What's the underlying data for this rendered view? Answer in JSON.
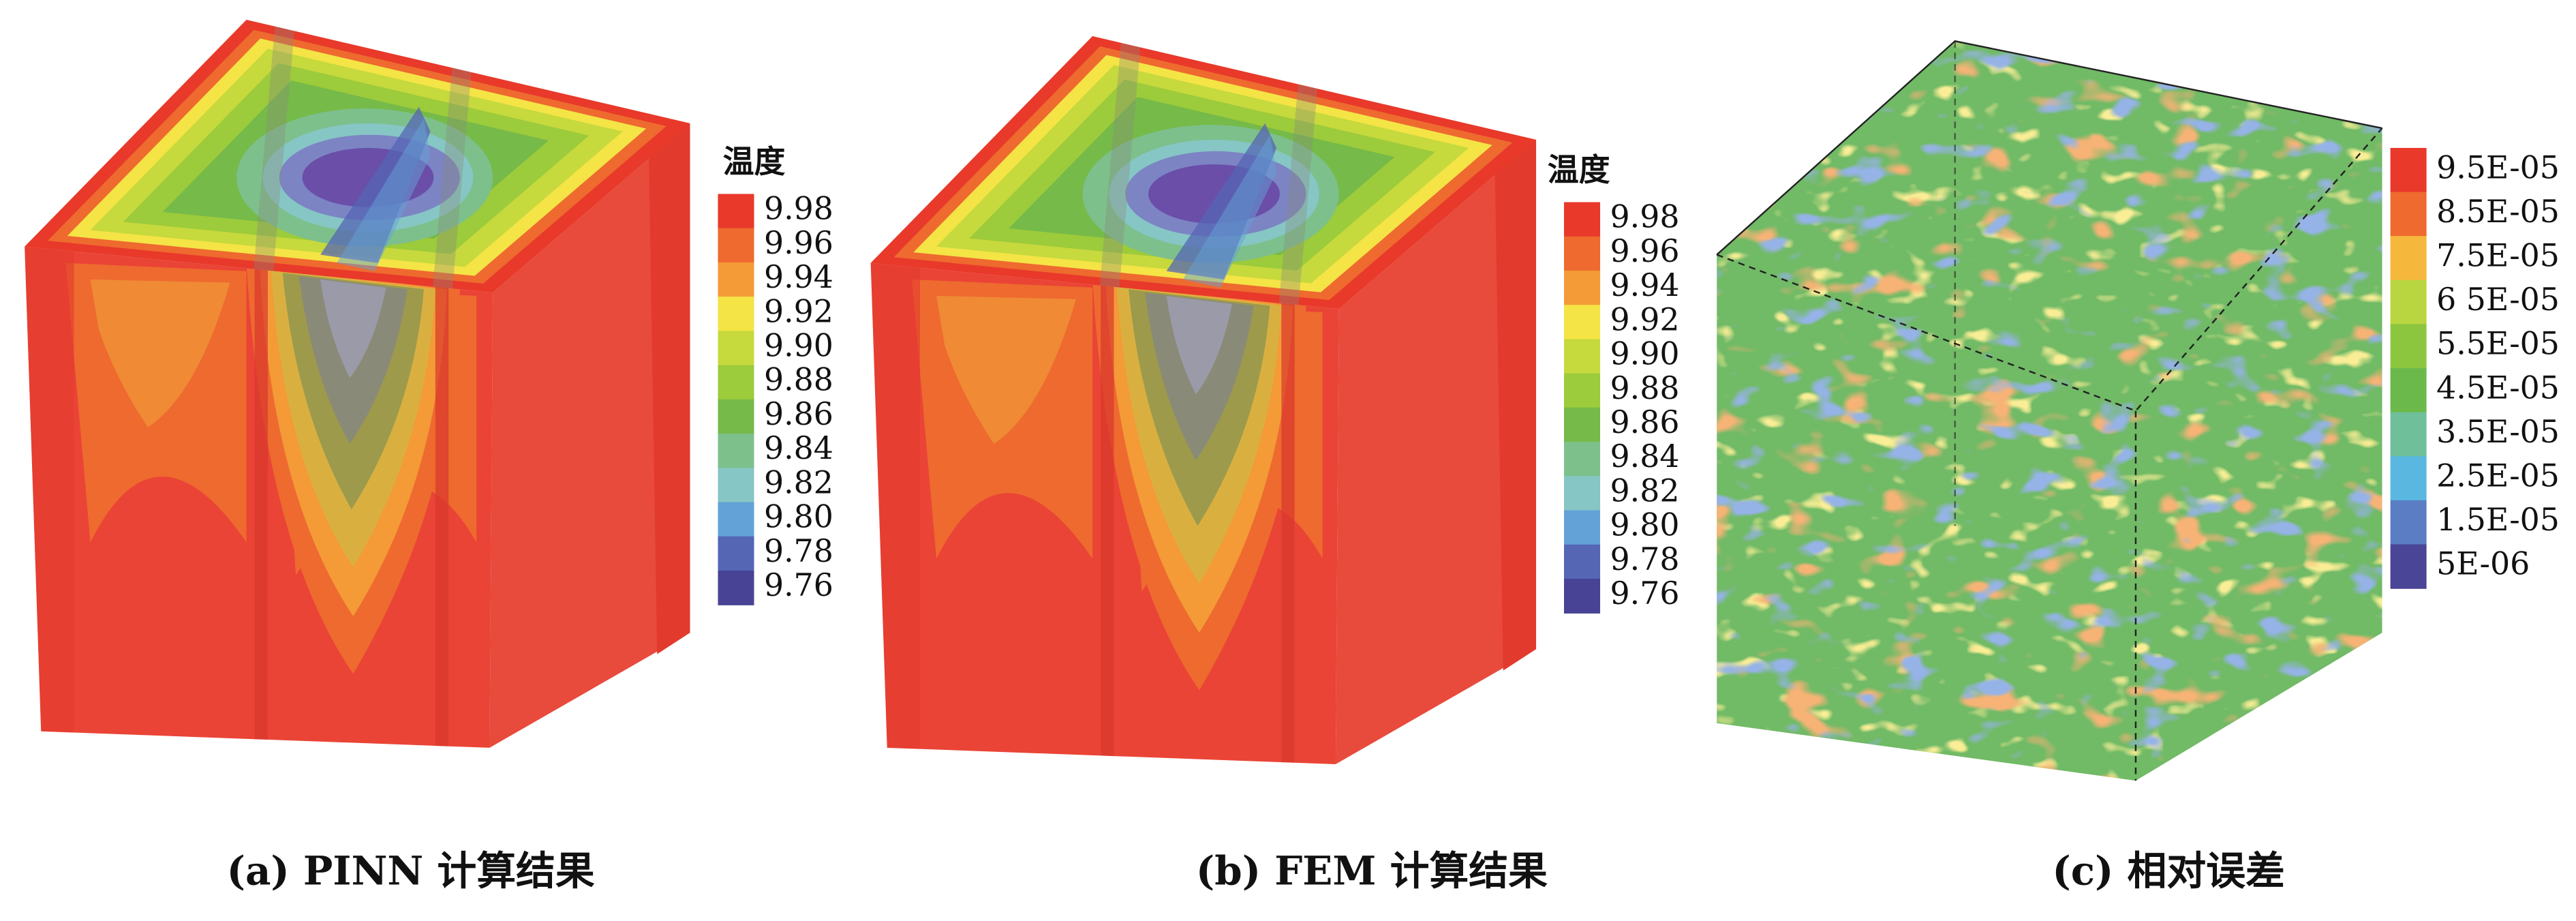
{
  "panels": [
    {
      "caption": "(a) PINN 计算结果",
      "legend": {
        "title": "温度",
        "labels": [
          "9.98",
          "9.96",
          "9.94",
          "9.92",
          "9.90",
          "9.88",
          "9.86",
          "9.84",
          "9.82",
          "9.80",
          "9.78",
          "9.76"
        ],
        "colors": [
          "#e8392a",
          "#ee6a2f",
          "#f49a37",
          "#f4e445",
          "#c6d93d",
          "#9ccb3b",
          "#76ba49",
          "#7dc08c",
          "#86c6c4",
          "#63a2d6",
          "#5566b4",
          "#484395"
        ]
      }
    },
    {
      "caption": "(b) FEM 计算结果",
      "legend": {
        "title": "温度",
        "labels": [
          "9.98",
          "9.96",
          "9.94",
          "9.92",
          "9.90",
          "9.88",
          "9.86",
          "9.84",
          "9.82",
          "9.80",
          "9.78",
          "9.76"
        ],
        "colors": [
          "#e8392a",
          "#ee6a2f",
          "#f49a37",
          "#f4e445",
          "#c6d93d",
          "#9ccb3b",
          "#76ba49",
          "#7dc08c",
          "#86c6c4",
          "#63a2d6",
          "#5566b4",
          "#484395"
        ]
      }
    },
    {
      "caption": "(c) 相对误差",
      "legend": {
        "labels": [
          "9.5E-05",
          "8.5E-05",
          "7.5E-05",
          "6 5E-05",
          "5.5E-05",
          "4.5E-05",
          "3.5E-05",
          "2.5E-05",
          "1.5E-05",
          "5E-06"
        ],
        "colors": [
          "#e8392a",
          "#ee6a2f",
          "#f5b83d",
          "#b9d640",
          "#8cc63f",
          "#6cb94b",
          "#6fbf9a",
          "#5ab8e0",
          "#5a7dc4",
          "#4a4596"
        ]
      }
    }
  ]
}
